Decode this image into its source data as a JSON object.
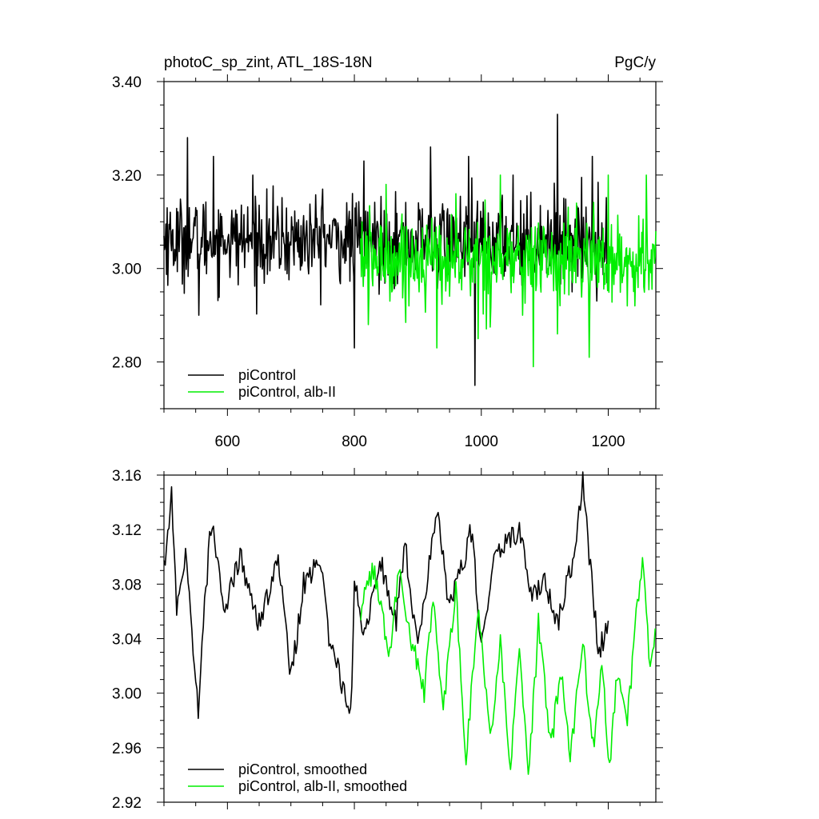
{
  "chart_data": [
    {
      "type": "line",
      "title": "photoC_sp_zint, ATL_18S-18N",
      "units": "PgC/y",
      "xlim": [
        500,
        1275
      ],
      "ylim": [
        2.7,
        3.4
      ],
      "xticks": [
        600,
        800,
        1000,
        1200
      ],
      "xtick_labels": [
        "600",
        "800",
        "1000",
        "1200"
      ],
      "yticks": [
        2.8,
        3.0,
        3.2,
        3.4
      ],
      "ytick_labels": [
        "2.80",
        "3.00",
        "3.20",
        "3.40"
      ],
      "grid": false,
      "legend_position": "bottom-left",
      "series": [
        {
          "name": "piControl",
          "color": "#000000",
          "x_range": [
            500,
            1200
          ],
          "mean": 3.06,
          "spread": 0.09,
          "x": [
            505,
            537,
            555,
            578,
            600,
            640,
            700,
            750,
            800,
            815,
            855,
            900,
            920,
            932,
            980,
            990,
            1000,
            1050,
            1100,
            1120,
            1160,
            1175,
            1199
          ],
          "values": [
            3.13,
            3.28,
            2.9,
            3.24,
            3.05,
            3.2,
            3.05,
            3.17,
            2.83,
            3.23,
            3.1,
            3.02,
            3.26,
            2.99,
            3.24,
            2.75,
            3.05,
            3.2,
            3.05,
            3.33,
            3.05,
            3.24,
            3.03
          ]
        },
        {
          "name": "piControl, alb-II",
          "color": "#00ee00",
          "x_range": [
            810,
            1275
          ],
          "mean": 3.02,
          "spread": 0.09,
          "x": [
            812,
            822,
            850,
            885,
            930,
            940,
            960,
            995,
            1000,
            1030,
            1065,
            1082,
            1095,
            1120,
            1150,
            1170,
            1200,
            1230,
            1260,
            1275
          ],
          "values": [
            3.1,
            2.88,
            3.18,
            3.02,
            2.83,
            3.0,
            3.16,
            2.85,
            3.05,
            3.2,
            2.9,
            2.79,
            3.06,
            2.86,
            3.14,
            2.81,
            3.2,
            2.92,
            3.2,
            3.08
          ]
        }
      ]
    },
    {
      "type": "line",
      "xlim": [
        500,
        1275
      ],
      "ylim": [
        2.92,
        3.16
      ],
      "xticks": [
        600,
        800,
        1000,
        1200
      ],
      "yticks": [
        2.92,
        2.96,
        3.0,
        3.04,
        3.08,
        3.12,
        3.16
      ],
      "ytick_labels": [
        "2.92",
        "2.96",
        "3.00",
        "3.04",
        "3.08",
        "3.12",
        "3.16"
      ],
      "grid": false,
      "legend_position": "bottom-left",
      "series": [
        {
          "name": "piControl, smoothed",
          "color": "#000000",
          "x": [
            500,
            512,
            520,
            535,
            555,
            560,
            575,
            595,
            620,
            650,
            680,
            700,
            720,
            745,
            760,
            795,
            800,
            815,
            840,
            865,
            880,
            900,
            920,
            930,
            950,
            985,
            1000,
            1020,
            1060,
            1080,
            1100,
            1120,
            1145,
            1160,
            1170,
            1185,
            1200
          ],
          "values": [
            3.09,
            3.145,
            3.06,
            3.1,
            2.982,
            3.04,
            3.13,
            3.06,
            3.1,
            3.05,
            3.1,
            3.01,
            3.08,
            3.1,
            3.04,
            2.985,
            3.09,
            3.04,
            3.1,
            3.05,
            3.11,
            3.03,
            3.1,
            3.137,
            3.06,
            3.12,
            3.03,
            3.1,
            3.12,
            3.07,
            3.08,
            3.05,
            3.1,
            3.158,
            3.1,
            3.03,
            3.05
          ]
        },
        {
          "name": "piControl, alb-II, smoothed",
          "color": "#00ee00",
          "x": [
            810,
            830,
            855,
            870,
            890,
            910,
            925,
            940,
            960,
            975,
            995,
            1015,
            1030,
            1045,
            1060,
            1075,
            1090,
            1110,
            1125,
            1140,
            1160,
            1175,
            1190,
            1202,
            1215,
            1230,
            1245,
            1255,
            1265,
            1275
          ],
          "values": [
            3.06,
            3.09,
            3.03,
            3.09,
            3.04,
            3.0,
            3.07,
            2.99,
            3.08,
            2.95,
            3.06,
            2.97,
            3.04,
            2.94,
            3.03,
            2.94,
            3.05,
            2.96,
            3.02,
            2.95,
            3.04,
            2.955,
            3.02,
            2.945,
            3.02,
            2.98,
            3.06,
            3.1,
            3.02,
            3.05
          ]
        }
      ]
    }
  ]
}
